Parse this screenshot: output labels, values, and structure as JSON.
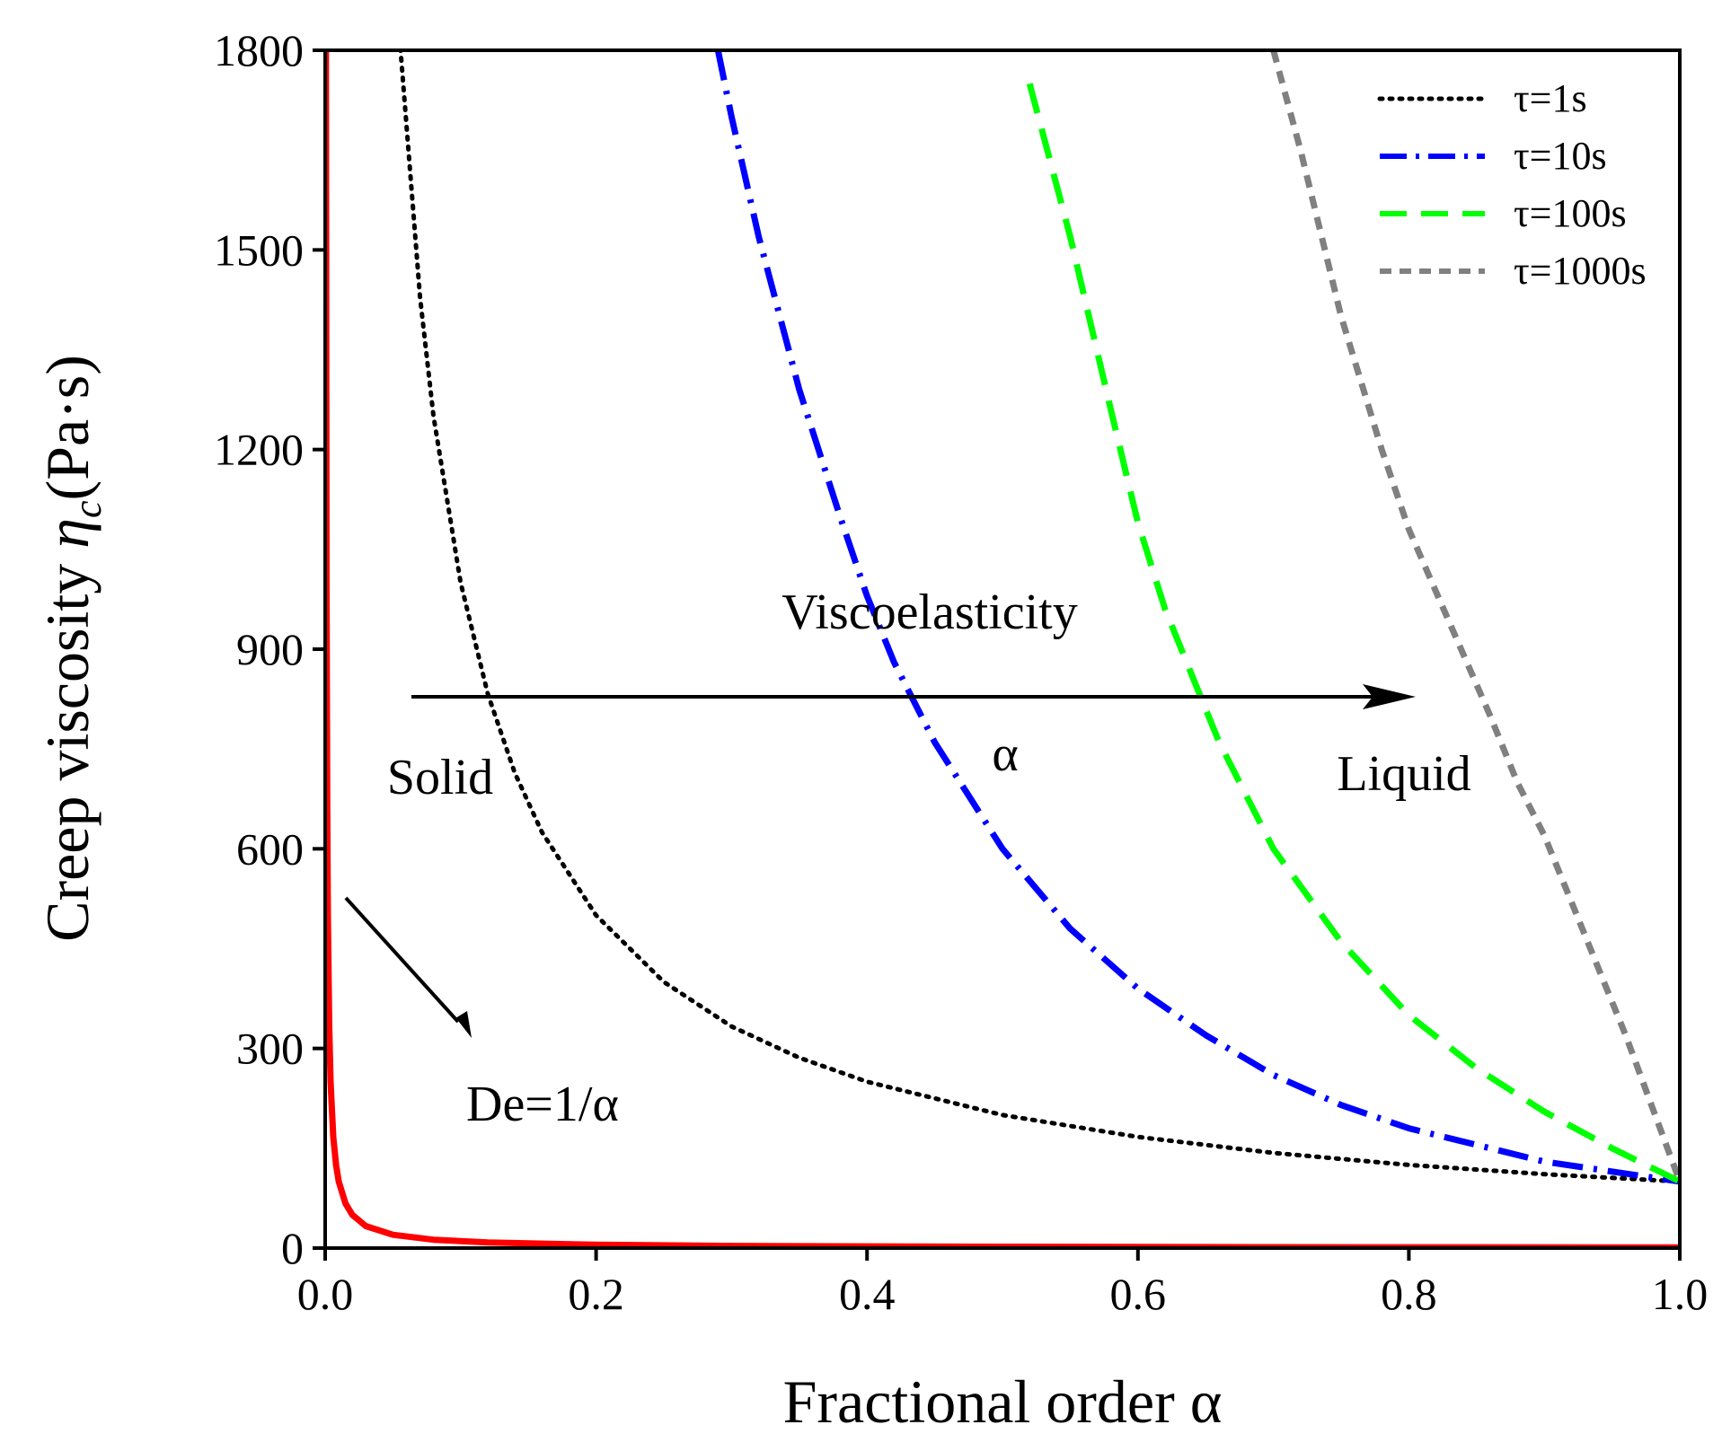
{
  "chart_data": {
    "type": "line",
    "title": "",
    "xlabel": "Fractional order α",
    "ylabel": {
      "main": "Creep viscosity ",
      "symbol": "η",
      "subscript": "c",
      "unit": "(Pa·s)"
    },
    "xlim": [
      0.0,
      1.0
    ],
    "ylim": [
      0,
      1800
    ],
    "x_ticks": [
      "0.0",
      "0.2",
      "0.4",
      "0.6",
      "0.8",
      "1.0"
    ],
    "y_ticks": [
      "0",
      "300",
      "600",
      "900",
      "1200",
      "1500",
      "1800"
    ],
    "grid": false,
    "legend": {
      "position": "top-right",
      "entries": [
        "τ=1s",
        "τ=10s",
        "τ=100s",
        "τ=1000s"
      ]
    },
    "series": [
      {
        "name": "τ=1s",
        "style": "dotted",
        "color": "#000000",
        "x": [
          0.055,
          0.07,
          0.08,
          0.1,
          0.12,
          0.14,
          0.16,
          0.2,
          0.25,
          0.3,
          0.35,
          0.4,
          0.5,
          0.6,
          0.7,
          0.8,
          0.9,
          1.0
        ],
        "y": [
          1818,
          1429,
          1250,
          1000,
          833,
          714,
          625,
          500,
          400,
          333,
          286,
          250,
          200,
          167,
          143,
          125,
          111,
          100
        ]
      },
      {
        "name": "τ=10s",
        "style": "dash-dot",
        "color": "#0000ff",
        "x": [
          0.29,
          0.3,
          0.32,
          0.35,
          0.38,
          0.4,
          0.42,
          0.45,
          0.5,
          0.55,
          0.6,
          0.65,
          0.7,
          0.75,
          0.8,
          0.85,
          0.9,
          0.95,
          1.0
        ],
        "y": [
          1800,
          1700,
          1520,
          1290,
          1100,
          980,
          880,
          760,
          600,
          480,
          390,
          320,
          260,
          215,
          180,
          155,
          130,
          115,
          100
        ]
      },
      {
        "name": "τ=100s",
        "style": "dashed",
        "color": "#00ff00",
        "x": [
          0.52,
          0.55,
          0.58,
          0.6,
          0.62,
          0.64,
          0.66,
          0.7,
          0.75,
          0.8,
          0.85,
          0.9,
          0.95,
          1.0
        ],
        "y": [
          1750,
          1520,
          1260,
          1090,
          960,
          860,
          760,
          600,
          460,
          350,
          270,
          205,
          150,
          100
        ]
      },
      {
        "name": "τ=1000s",
        "style": "short-dash",
        "color": "#808080",
        "x": [
          0.7,
          0.72,
          0.75,
          0.78,
          0.8,
          0.83,
          0.86,
          0.88,
          0.9,
          0.92,
          0.94,
          0.96,
          0.98,
          1.0
        ],
        "y": [
          1800,
          1650,
          1400,
          1200,
          1080,
          940,
          800,
          700,
          620,
          520,
          420,
          320,
          210,
          100
        ]
      },
      {
        "name": "De=1/α",
        "style": "solid",
        "color": "#ff0000",
        "x": [
          0.0005,
          0.001,
          0.0015,
          0.002,
          0.003,
          0.004,
          0.006,
          0.008,
          0.01,
          0.015,
          0.02,
          0.03,
          0.05,
          0.08,
          0.12,
          0.2,
          0.3,
          0.5,
          0.7,
          1.0
        ],
        "y": [
          1800,
          1000,
          667,
          500,
          333,
          250,
          167,
          125,
          100,
          67,
          50,
          33,
          20,
          12.5,
          8.3,
          5,
          3.3,
          2,
          1.4,
          1
        ]
      }
    ],
    "annotations": {
      "viscoelasticity": "Viscoelasticity",
      "alpha": "α",
      "solid": "Solid",
      "liquid": "Liquid",
      "de_label": "De=1/α"
    }
  }
}
